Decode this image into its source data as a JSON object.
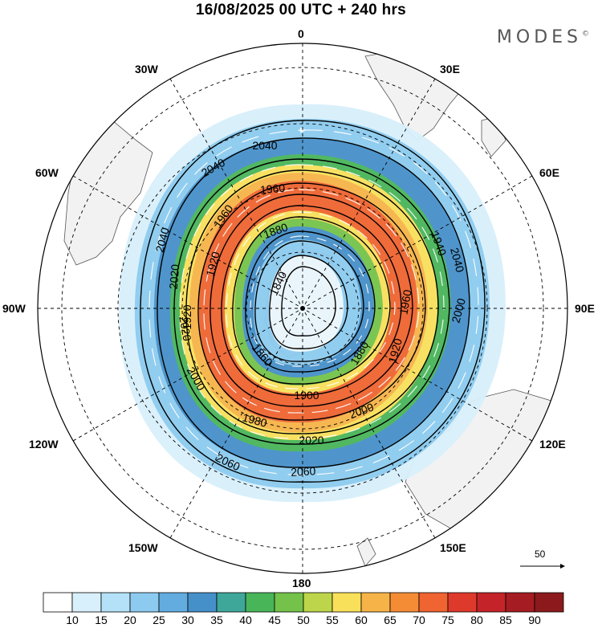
{
  "title": "16/08/2025  00 UTC  + 240 hrs",
  "brand": "MODES",
  "brand_mark": "©",
  "longitude_labels": {
    "n": "0",
    "n30e": "30E",
    "n60e": "60E",
    "e": "90E",
    "s120e": "120E",
    "s150e": "150E",
    "s": "180",
    "s150w": "150W",
    "s120w": "120W",
    "w": "90W",
    "n60w": "60W",
    "n30w": "30W"
  },
  "contour_labels": [
    "2040",
    "2040",
    "2040",
    "2040",
    "1960",
    "1960",
    "1920",
    "1920",
    "1880",
    "1840",
    "1860",
    "1900",
    "1980",
    "2000",
    "2020",
    "2060",
    "2060",
    "2000",
    "2020",
    "1960",
    "1920",
    "2020",
    "2000",
    "1880",
    "1940"
  ],
  "reference_vector": "50",
  "colorbar": {
    "labels": [
      "10",
      "15",
      "20",
      "25",
      "30",
      "35",
      "40",
      "45",
      "50",
      "55",
      "60",
      "65",
      "70",
      "75",
      "80",
      "85",
      "90"
    ],
    "colors": [
      "#ffffff",
      "#d8f0fb",
      "#b4e1f7",
      "#8ccbef",
      "#62ace0",
      "#4690c9",
      "#3ea79a",
      "#48b559",
      "#74c24a",
      "#bcd54a",
      "#f8e05a",
      "#f6b448",
      "#f48c36",
      "#ef6430",
      "#de3a2c",
      "#c42429",
      "#a51d22",
      "#8c1a1c"
    ]
  },
  "colors": {
    "land": "#f2f2f2",
    "coast": "#555555",
    "contour": "#000000"
  }
}
